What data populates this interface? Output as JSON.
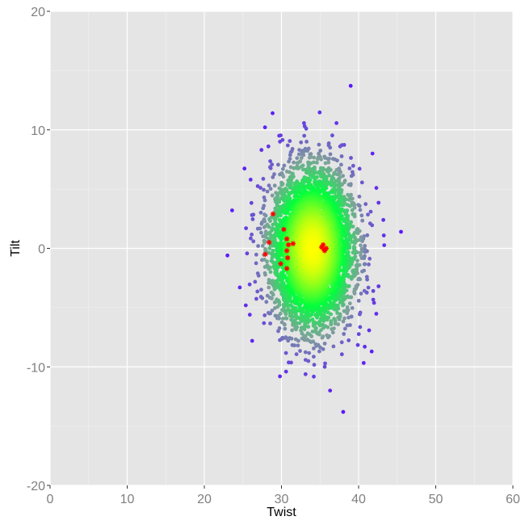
{
  "chart_data": {
    "type": "scatter",
    "xlabel": "Twist",
    "ylabel": "Tilt",
    "xlim": [
      0,
      60
    ],
    "ylim": [
      -20,
      20
    ],
    "x_ticks": [
      0,
      10,
      20,
      30,
      40,
      50,
      60
    ],
    "y_ticks": [
      -20,
      -10,
      0,
      10,
      20
    ],
    "x_tick_labels": [
      "0",
      "10",
      "20",
      "30",
      "40",
      "50",
      "60"
    ],
    "y_tick_labels": [
      "-20",
      "-10",
      "0",
      "10",
      "20"
    ],
    "grid": true,
    "legend": "none",
    "colors": {
      "panel_background": "#e5e5e5",
      "grid_major": "#ffffff",
      "grid_minor": "#f2f2f2",
      "density_high": "#ffff00",
      "density_mid": "#00ff3c",
      "density_low": "#7fa09b",
      "density_outlier": "#5a10ff",
      "highlight": "#ff0000"
    },
    "series": [
      {
        "marker": "circle",
        "color_scale": "density",
        "cloud": {
          "center": [
            34.0,
            0.0
          ],
          "sd": [
            2.6,
            3.2
          ],
          "approx_count": 5000
        },
        "outliers": [
          [
            23.6,
            3.2
          ],
          [
            23.0,
            -0.6
          ],
          [
            45.5,
            1.4
          ],
          [
            43.2,
            2.4
          ],
          [
            41.8,
            8.0
          ],
          [
            41.7,
            -8.7
          ],
          [
            38.0,
            -13.8
          ],
          [
            36.3,
            -12.0
          ],
          [
            29.8,
            -10.8
          ],
          [
            30.6,
            -10.4
          ],
          [
            33.0,
            10.3
          ],
          [
            33.2,
            10.1
          ],
          [
            29.7,
            9.5
          ],
          [
            29.8,
            9.0
          ],
          [
            27.4,
            8.3
          ],
          [
            28.3,
            8.6
          ],
          [
            26.2,
            -7.8
          ],
          [
            24.6,
            -3.3
          ],
          [
            25.4,
            1.7
          ],
          [
            42.0,
            -4.6
          ],
          [
            41.9,
            -3.6
          ],
          [
            42.3,
            5.1
          ],
          [
            40.8,
            -8.3
          ],
          [
            37.6,
            8.6
          ],
          [
            25.9,
            -5.6
          ],
          [
            41.5,
            2.1
          ],
          [
            26.0,
            5.8
          ],
          [
            36.3,
            8.5
          ],
          [
            31.2,
            8.1
          ]
        ]
      },
      {
        "marker": "asterisk",
        "color": "#ff0000",
        "points": [
          [
            28.9,
            2.9
          ],
          [
            30.3,
            1.6
          ],
          [
            30.7,
            0.8
          ],
          [
            31.5,
            0.4
          ],
          [
            30.9,
            0.3
          ],
          [
            28.4,
            0.5
          ],
          [
            30.7,
            -0.2
          ],
          [
            27.9,
            -0.5
          ],
          [
            30.8,
            -0.8
          ],
          [
            29.9,
            -1.3
          ],
          [
            30.7,
            -1.7
          ],
          [
            35.2,
            0.1
          ],
          [
            35.5,
            -0.1
          ],
          [
            35.8,
            0.0
          ],
          [
            35.4,
            0.3
          ],
          [
            35.6,
            -0.2
          ]
        ]
      }
    ]
  }
}
